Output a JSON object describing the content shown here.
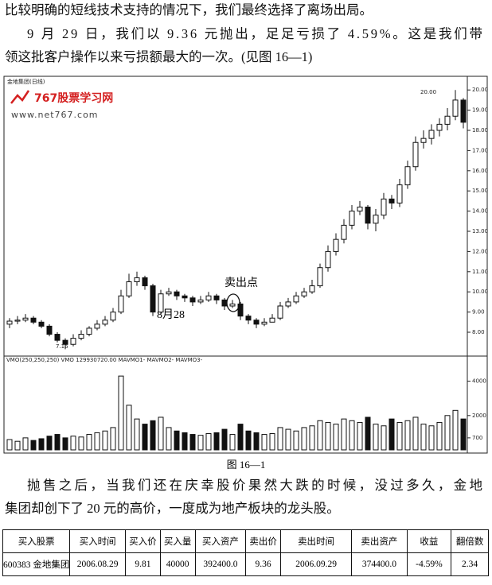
{
  "paragraphs": [
    {
      "lines": [
        "比较明确的短线技术支持的情况下，我们最终选择了离场出局。"
      ]
    },
    {
      "lines": [
        "9 月 29 日，我们以 9.36 元抛出，足足亏损了 4.59%。这是我们带",
        "领这批客户操作以来亏损额最大的一次。(见图 16—1)"
      ]
    },
    {
      "lines": [
        "抛售之后，当我们还在庆幸股价果然大跌的时候，没过多久，金地",
        "集团却创下了 20 元的高价，一度成为地产板块的龙头股。"
      ]
    }
  ],
  "chart": {
    "type": "candlestick",
    "title": "金地集团(日线)",
    "watermark": "767股票学习网",
    "website": "www.net767.com",
    "high_label": "20.00",
    "low_label": "7.16",
    "sell_label": "卖出点",
    "date_label": "8月28",
    "volume_title": "VMO(250,250,250) VMO 129930720.00 MAVMO1- MAVMO2- MAVMO3-",
    "ylim": [
      7,
      20.5
    ],
    "yticks": [
      {
        "value": 20,
        "label": "20.00"
      },
      {
        "value": 19,
        "label": "19.00"
      },
      {
        "value": 18,
        "label": "18.00"
      },
      {
        "value": 17,
        "label": "17.00"
      },
      {
        "value": 16,
        "label": "16.00"
      },
      {
        "value": 15,
        "label": "15.00"
      },
      {
        "value": 14,
        "label": "14.00"
      },
      {
        "value": 13,
        "label": "13.00"
      },
      {
        "value": 12,
        "label": "12.00"
      },
      {
        "value": 11,
        "label": "11.00"
      },
      {
        "value": 10,
        "label": "10.00"
      },
      {
        "value": 9,
        "label": "9.00"
      },
      {
        "value": 8,
        "label": "8.00"
      }
    ],
    "open": [
      8.4,
      8.55,
      8.6,
      8.7,
      8.5,
      8.3,
      7.9,
      7.6,
      7.4,
      7.7,
      7.9,
      8.2,
      8.4,
      8.6,
      9.0,
      9.8,
      10.5,
      10.7,
      10.3,
      9.0,
      9.9,
      10.0,
      9.8,
      9.7,
      9.5,
      9.6,
      9.8,
      9.6,
      9.3,
      9.4,
      8.8,
      8.6,
      8.4,
      8.5,
      8.7,
      9.3,
      9.5,
      9.8,
      10.0,
      10.3,
      11.2,
      12.0,
      12.6,
      13.3,
      14.0,
      14.2,
      13.4,
      13.8,
      14.6,
      14.4,
      15.3,
      16.2,
      17.4,
      17.6,
      18.0,
      18.3,
      18.7,
      19.5
    ],
    "close": [
      8.55,
      8.6,
      8.7,
      8.5,
      8.3,
      7.9,
      7.6,
      7.4,
      7.7,
      7.9,
      8.2,
      8.4,
      8.6,
      9.0,
      9.8,
      10.5,
      10.7,
      10.3,
      9.0,
      9.9,
      10.0,
      9.8,
      9.7,
      9.5,
      9.6,
      9.8,
      9.6,
      9.3,
      9.4,
      8.8,
      8.6,
      8.4,
      8.5,
      8.7,
      9.3,
      9.5,
      9.8,
      10.0,
      10.3,
      11.2,
      12.0,
      12.6,
      13.3,
      14.0,
      14.2,
      13.4,
      13.8,
      14.6,
      14.4,
      15.3,
      16.2,
      17.4,
      17.6,
      18.0,
      18.3,
      18.7,
      19.5,
      18.4
    ],
    "high": [
      8.7,
      8.8,
      8.9,
      8.8,
      8.6,
      8.4,
      8.0,
      7.7,
      7.9,
      8.1,
      8.3,
      8.6,
      8.8,
      9.2,
      10.1,
      10.9,
      11.0,
      10.8,
      10.4,
      10.1,
      10.2,
      10.1,
      9.9,
      9.8,
      9.8,
      10.0,
      9.9,
      9.7,
      9.6,
      9.5,
      8.9,
      8.7,
      8.7,
      8.9,
      9.5,
      9.7,
      10.0,
      10.2,
      10.6,
      11.4,
      12.3,
      12.9,
      13.6,
      14.3,
      14.5,
      14.3,
      14.1,
      14.9,
      14.8,
      15.6,
      16.5,
      17.7,
      18.0,
      18.3,
      18.6,
      19.1,
      20.0,
      19.6
    ],
    "low": [
      8.2,
      8.4,
      8.5,
      8.4,
      8.2,
      7.8,
      7.5,
      7.16,
      7.3,
      7.6,
      7.8,
      8.1,
      8.3,
      8.5,
      8.9,
      9.7,
      10.3,
      10.1,
      8.8,
      8.9,
      9.8,
      9.6,
      9.5,
      9.3,
      9.4,
      9.5,
      9.4,
      9.1,
      9.2,
      8.6,
      8.4,
      8.2,
      8.3,
      8.5,
      8.6,
      9.2,
      9.4,
      9.7,
      9.9,
      10.2,
      11.0,
      11.8,
      12.4,
      13.1,
      13.8,
      13.1,
      13.0,
      13.6,
      14.1,
      14.2,
      15.1,
      16.0,
      17.1,
      17.3,
      17.7,
      18.0,
      18.5,
      18.1
    ],
    "volume": [
      600,
      500,
      700,
      550,
      650,
      800,
      900,
      700,
      800,
      750,
      900,
      1000,
      1100,
      1300,
      4300,
      2600,
      1800,
      1500,
      1700,
      1900,
      1300,
      1100,
      1000,
      900,
      850,
      950,
      1000,
      1200,
      900,
      1500,
      1100,
      1000,
      900,
      950,
      1300,
      1200,
      1100,
      1300,
      1400,
      1700,
      1600,
      1500,
      1800,
      1700,
      1600,
      1900,
      1500,
      1400,
      1800,
      1600,
      1700,
      1900,
      1500,
      1400,
      1600,
      2000,
      2300,
      1800
    ],
    "vlim": [
      0,
      5000
    ],
    "vticks": [
      4000,
      2000,
      700
    ]
  },
  "caption": "图 16—1",
  "table": {
    "header": [
      "买入股票",
      "买入时间",
      "买入价",
      "买入量",
      "买入资产",
      "卖出价",
      "卖出时间",
      "卖出资产",
      "收益",
      "翻倍数"
    ],
    "rows": [
      [
        "600383 金地集团",
        "2006.08.29",
        "9.81",
        "40000",
        "392400.0",
        "9.36",
        "2006.09.29",
        "374400.0",
        "-4.59%",
        "2.34"
      ]
    ]
  }
}
